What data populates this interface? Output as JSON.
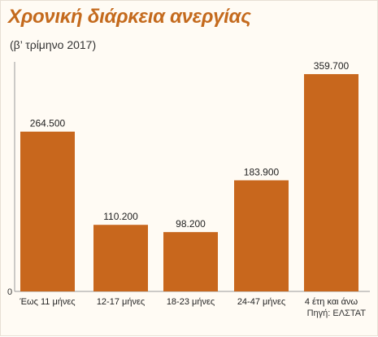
{
  "chart_data": {
    "type": "bar",
    "title": "Χρονική διάρκεια ανεργίας",
    "subtitle": "(β’ τρίμηνο 2017)",
    "categories": [
      "Έως 11 μήνες",
      "12-17 μήνες",
      "18-23 μήνες",
      "24-47 μήνες",
      "4 έτη και άνω"
    ],
    "values": [
      264500,
      110200,
      98200,
      183900,
      359700
    ],
    "value_labels": [
      "264.500",
      "110.200",
      "98.200",
      "183.900",
      "359.700"
    ],
    "y_tick_labels": [
      "0"
    ],
    "ylim": [
      0,
      380000
    ],
    "grid": false,
    "legend": "none",
    "bar_color": "#c8671d",
    "title_color": "#c46a1d",
    "source": "Πηγή: ΕΛΣΤΑΤ"
  }
}
